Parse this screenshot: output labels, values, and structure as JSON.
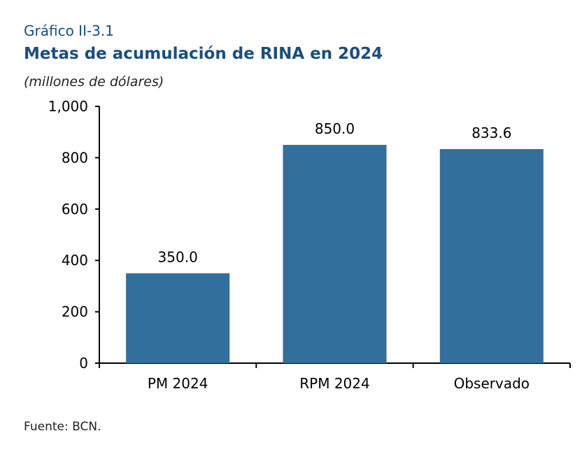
{
  "header": {
    "kicker": "Gráfico II-3.1",
    "title": "Metas de acumulación de RINA en 2024",
    "subtitle": "(millones de dólares)"
  },
  "footer": {
    "source": "Fuente: BCN."
  },
  "colors": {
    "bar": "#336f9c",
    "title": "#1a4e80"
  },
  "chart_data": {
    "type": "bar",
    "categories": [
      "PM 2024",
      "RPM 2024",
      "Observado"
    ],
    "values": [
      350.0,
      850.0,
      833.6
    ],
    "data_labels": [
      "350.0",
      "850.0",
      "833.6"
    ],
    "xlabel": "",
    "ylabel": "",
    "ylim": [
      0,
      1000
    ],
    "yticks": [
      0,
      200,
      400,
      600,
      800,
      1000
    ],
    "ytick_labels": [
      "0",
      "200",
      "400",
      "600",
      "800",
      "1,000"
    ],
    "grid": false,
    "legend": "none"
  }
}
